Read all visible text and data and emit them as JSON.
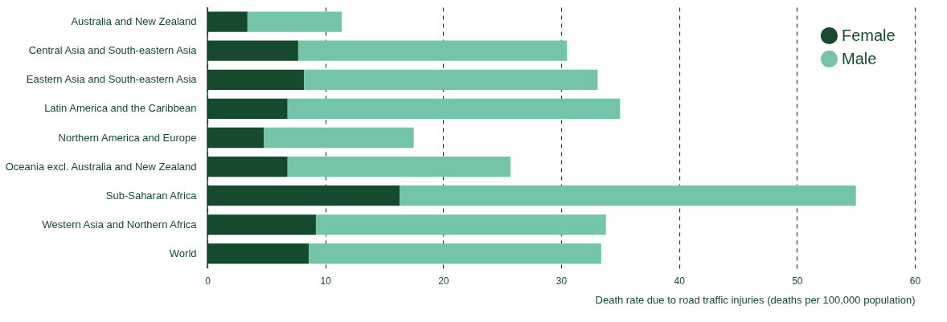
{
  "chart_data": {
    "type": "bar",
    "orientation": "horizontal",
    "stacked": true,
    "xlabel": "Death rate due to road traffic injuries (deaths per 100,000 population)",
    "categories": [
      "Australia and New Zealand",
      "Central Asia and South-eastern Asia",
      "Eastern Asia and South-eastern Asia",
      "Latin America and the Caribbean",
      "Northern America and Europe",
      "Oceania excl. Australia and New Zealand",
      "Sub-Saharan Africa",
      "Western Asia and Northern Africa",
      "World"
    ],
    "series": [
      {
        "name": "Female",
        "color": "#154a2c",
        "values": [
          3.4,
          7.7,
          8.2,
          6.8,
          4.8,
          6.8,
          16.3,
          9.2,
          8.6
        ]
      },
      {
        "name": "Male",
        "color": "#74c5a8",
        "values": [
          8.0,
          22.8,
          24.9,
          28.2,
          12.7,
          18.9,
          38.7,
          24.6,
          24.8
        ]
      }
    ],
    "xlim": [
      0,
      60
    ],
    "xticks": [
      0,
      10,
      20,
      30,
      40,
      50,
      60
    ],
    "grid": "x",
    "legend": "top right"
  }
}
